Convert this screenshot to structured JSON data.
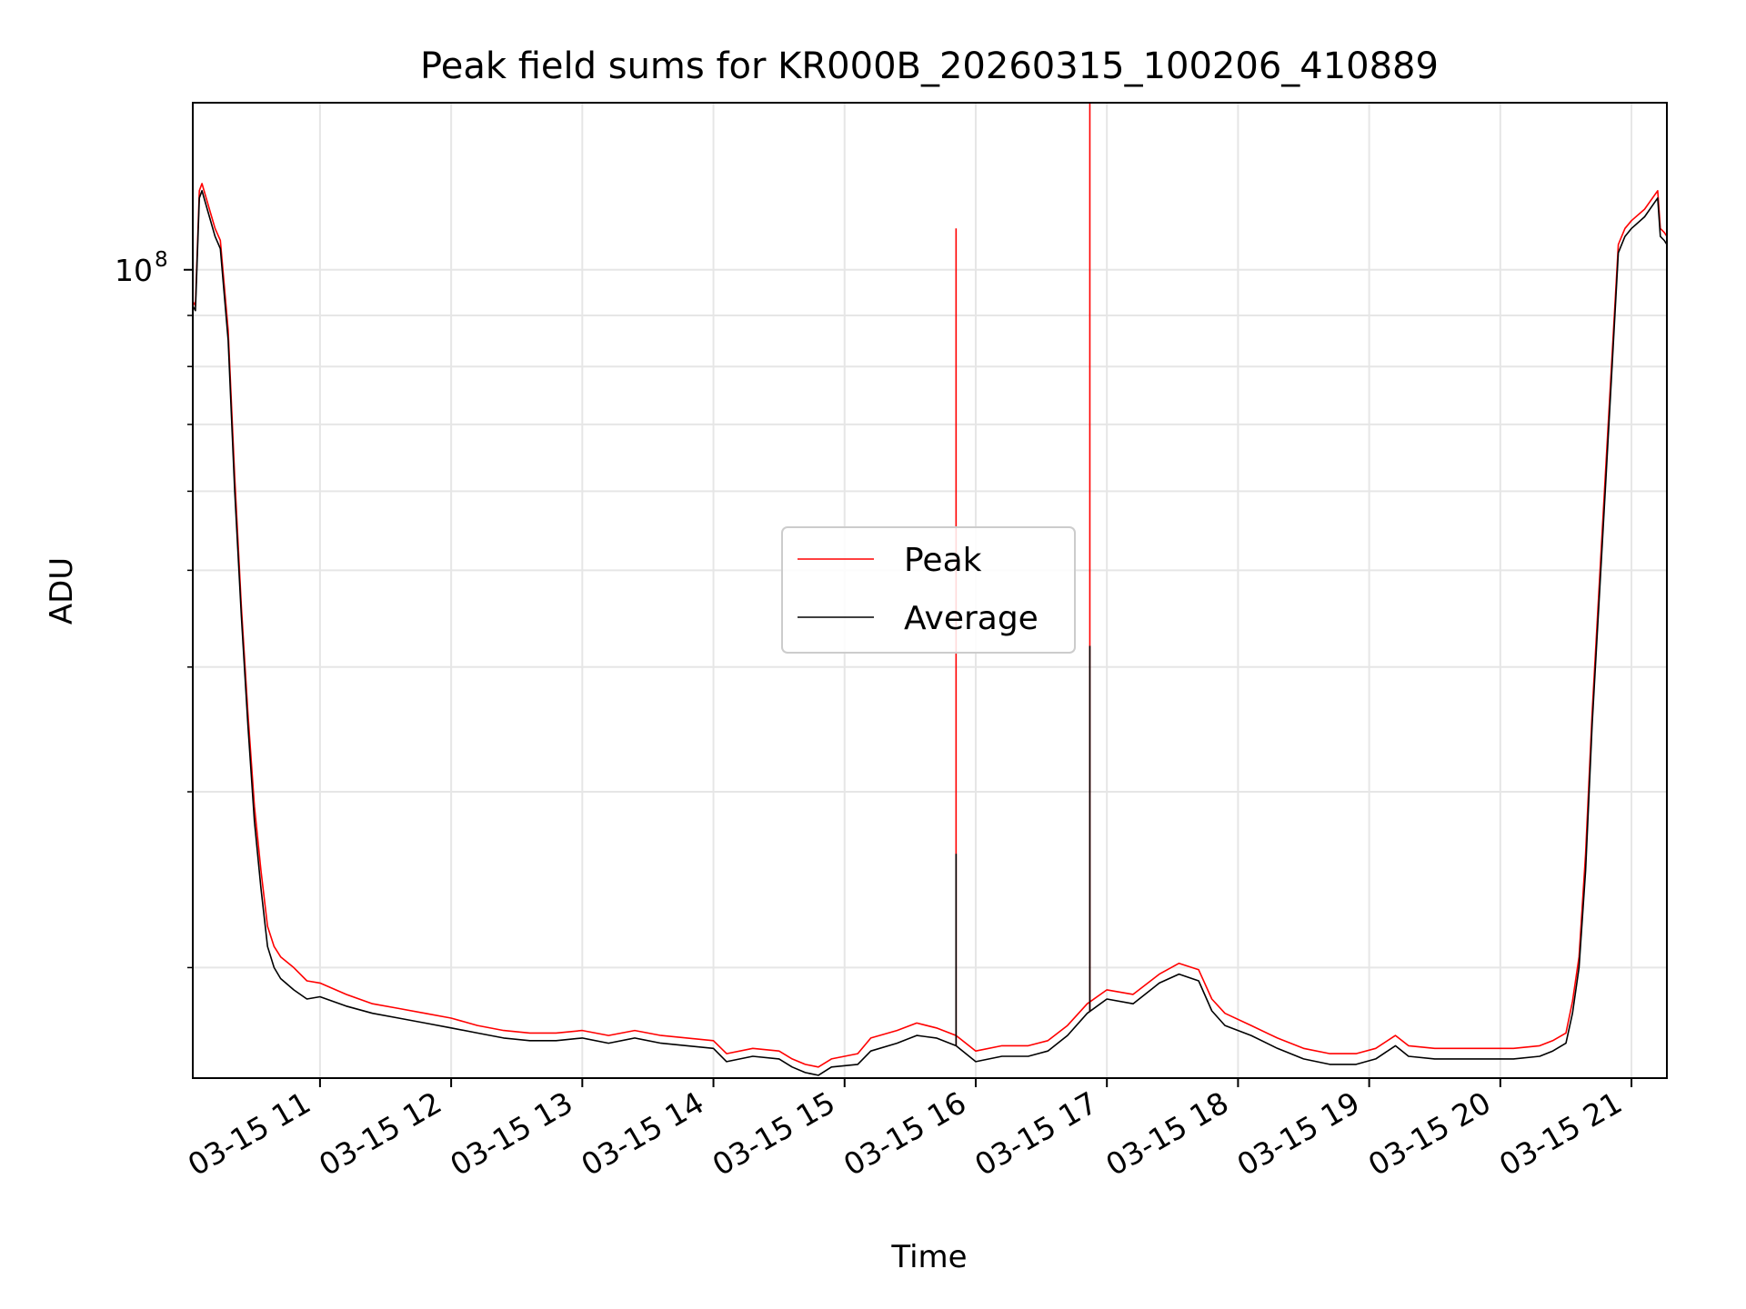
{
  "chart_data": {
    "type": "line",
    "title": "Peak field sums for KR000B_20260315_100206_410889",
    "xlabel": "Time",
    "ylabel": "ADU",
    "x_unit": "hours of day on 2026-03-15",
    "xlim": [
      10.03,
      21.27
    ],
    "ylim": [
      15500000,
      147000000
    ],
    "yscale": "log",
    "grid": true,
    "legend_position": "center",
    "x_ticks": [
      {
        "value": 11,
        "label": "03-15 11"
      },
      {
        "value": 12,
        "label": "03-15 12"
      },
      {
        "value": 13,
        "label": "03-15 13"
      },
      {
        "value": 14,
        "label": "03-15 14"
      },
      {
        "value": 15,
        "label": "03-15 15"
      },
      {
        "value": 16,
        "label": "03-15 16"
      },
      {
        "value": 17,
        "label": "03-15 17"
      },
      {
        "value": 18,
        "label": "03-15 18"
      },
      {
        "value": 19,
        "label": "03-15 19"
      },
      {
        "value": 20,
        "label": "03-15 20"
      },
      {
        "value": 21,
        "label": "03-15 21"
      }
    ],
    "y_ticks": [
      {
        "value": 100000000,
        "label_base": "10",
        "label_exp": "8"
      }
    ],
    "y_minor_ticks": [
      20000000,
      30000000,
      40000000,
      50000000,
      60000000,
      70000000,
      80000000,
      90000000
    ],
    "series": [
      {
        "name": "Average",
        "color": "#000000",
        "x": [
          10.03,
          10.05,
          10.08,
          10.1,
          10.14,
          10.2,
          10.24,
          10.3,
          10.35,
          10.4,
          10.45,
          10.5,
          10.55,
          10.6,
          10.65,
          10.7,
          10.8,
          10.9,
          11.0,
          11.2,
          11.4,
          11.6,
          11.8,
          12.0,
          12.2,
          12.4,
          12.6,
          12.8,
          13.0,
          13.2,
          13.4,
          13.6,
          13.8,
          14.0,
          14.1,
          14.3,
          14.5,
          14.6,
          14.7,
          14.8,
          14.9,
          15.1,
          15.2,
          15.4,
          15.55,
          15.7,
          15.85,
          16.0,
          16.2,
          16.4,
          16.55,
          16.7,
          16.85,
          17.0,
          17.2,
          17.4,
          17.55,
          17.7,
          17.8,
          17.9,
          18.1,
          18.3,
          18.5,
          18.7,
          18.9,
          19.05,
          19.2,
          19.3,
          19.5,
          19.7,
          19.9,
          20.1,
          20.3,
          20.4,
          20.5,
          20.55,
          20.6,
          20.65,
          20.7,
          20.8,
          20.9,
          20.95,
          21.0,
          21.1,
          21.2,
          21.22,
          21.25,
          21.27
        ],
        "y": [
          92000000,
          91000000,
          118000000,
          120000000,
          115000000,
          108000000,
          105000000,
          85000000,
          60000000,
          45000000,
          35000000,
          28000000,
          24000000,
          21000000,
          20000000,
          19500000,
          19000000,
          18600000,
          18700000,
          18300000,
          18000000,
          17800000,
          17600000,
          17400000,
          17200000,
          17000000,
          16900000,
          16900000,
          17000000,
          16800000,
          17000000,
          16800000,
          16700000,
          16600000,
          16100000,
          16300000,
          16200000,
          15900000,
          15700000,
          15600000,
          15900000,
          16000000,
          16500000,
          16800000,
          17100000,
          17000000,
          16700000,
          16100000,
          16300000,
          16300000,
          16500000,
          17100000,
          18000000,
          18600000,
          18400000,
          19300000,
          19700000,
          19400000,
          18100000,
          17500000,
          17100000,
          16600000,
          16200000,
          16000000,
          16000000,
          16200000,
          16700000,
          16300000,
          16200000,
          16200000,
          16200000,
          16200000,
          16300000,
          16500000,
          16800000,
          18000000,
          20000000,
          25000000,
          35000000,
          60000000,
          104000000,
          108000000,
          110000000,
          113000000,
          118000000,
          108000000,
          107000000,
          106000000
        ]
      },
      {
        "name": "Peak",
        "color": "#ff0000",
        "x": [
          10.03,
          10.05,
          10.08,
          10.1,
          10.14,
          10.2,
          10.24,
          10.3,
          10.35,
          10.4,
          10.45,
          10.5,
          10.55,
          10.6,
          10.65,
          10.7,
          10.8,
          10.9,
          11.0,
          11.2,
          11.4,
          11.6,
          11.8,
          12.0,
          12.2,
          12.4,
          12.6,
          12.8,
          13.0,
          13.2,
          13.4,
          13.6,
          13.8,
          14.0,
          14.1,
          14.3,
          14.5,
          14.6,
          14.7,
          14.8,
          14.9,
          15.1,
          15.2,
          15.4,
          15.55,
          15.7,
          15.85,
          16.0,
          16.2,
          16.4,
          16.55,
          16.7,
          16.85,
          17.0,
          17.2,
          17.4,
          17.55,
          17.7,
          17.8,
          17.9,
          18.1,
          18.3,
          18.5,
          18.7,
          18.9,
          19.05,
          19.2,
          19.3,
          19.5,
          19.7,
          19.9,
          20.1,
          20.3,
          20.4,
          20.5,
          20.55,
          20.6,
          20.65,
          20.7,
          20.8,
          20.9,
          20.95,
          21.0,
          21.1,
          21.2,
          21.22,
          21.25,
          21.27
        ],
        "y": [
          93000000,
          92000000,
          120000000,
          122000000,
          117000000,
          110000000,
          107000000,
          87000000,
          62000000,
          46000000,
          36000000,
          29000000,
          25000000,
          22000000,
          21000000,
          20500000,
          20000000,
          19400000,
          19300000,
          18800000,
          18400000,
          18200000,
          18000000,
          17800000,
          17500000,
          17300000,
          17200000,
          17200000,
          17300000,
          17100000,
          17300000,
          17100000,
          17000000,
          16900000,
          16400000,
          16600000,
          16500000,
          16200000,
          16000000,
          15900000,
          16200000,
          16400000,
          17000000,
          17300000,
          17600000,
          17400000,
          17100000,
          16500000,
          16700000,
          16700000,
          16900000,
          17500000,
          18400000,
          19000000,
          18800000,
          19700000,
          20200000,
          19900000,
          18600000,
          18000000,
          17500000,
          17000000,
          16600000,
          16400000,
          16400000,
          16600000,
          17100000,
          16700000,
          16600000,
          16600000,
          16600000,
          16600000,
          16700000,
          16900000,
          17200000,
          18500000,
          20500000,
          26000000,
          36000000,
          62000000,
          106000000,
          110000000,
          112000000,
          115000000,
          120000000,
          110000000,
          109000000,
          108000000
        ]
      }
    ],
    "spikes": [
      {
        "x": 15.85,
        "peak": 110000000,
        "average": 26000000
      },
      {
        "x": 16.87,
        "peak": 147000000,
        "average": 42000000
      }
    ]
  },
  "legend": {
    "peak_label": "Peak",
    "average_label": "Average"
  }
}
